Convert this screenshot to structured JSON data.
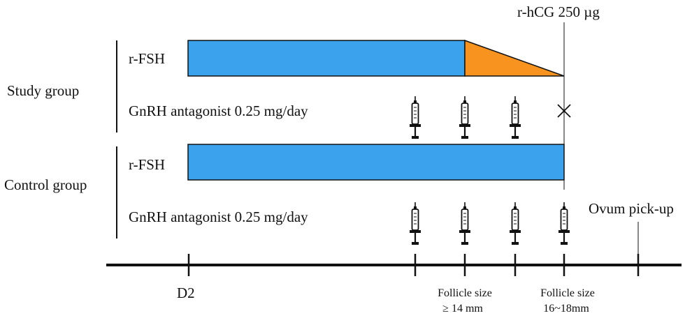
{
  "groups": {
    "study": {
      "name": "Study group",
      "drug1": "r-FSH",
      "drug2": "GnRH antagonist 0.25 mg/day"
    },
    "control": {
      "name": "Control group",
      "drug1": "r-FSH",
      "drug2": "GnRH antagonist 0.25 mg/day"
    }
  },
  "events": {
    "hcg": "r-hCG 250 µg",
    "ovum": "Ovum pick-up",
    "omitted_dose_mark": "×"
  },
  "timeline": {
    "d2": "D2",
    "follicle1_line1": "Follicle size",
    "follicle1_line2": "≥ 14 mm",
    "follicle2_line1": "Follicle size",
    "follicle2_line2": "16~18mm"
  },
  "colors": {
    "fsh_bar": "#3ba3ee",
    "fsh_taper": "#f7931e",
    "stroke": "#111111"
  },
  "icons": {
    "syringe": "syringe-icon",
    "cross": "cross-icon"
  }
}
